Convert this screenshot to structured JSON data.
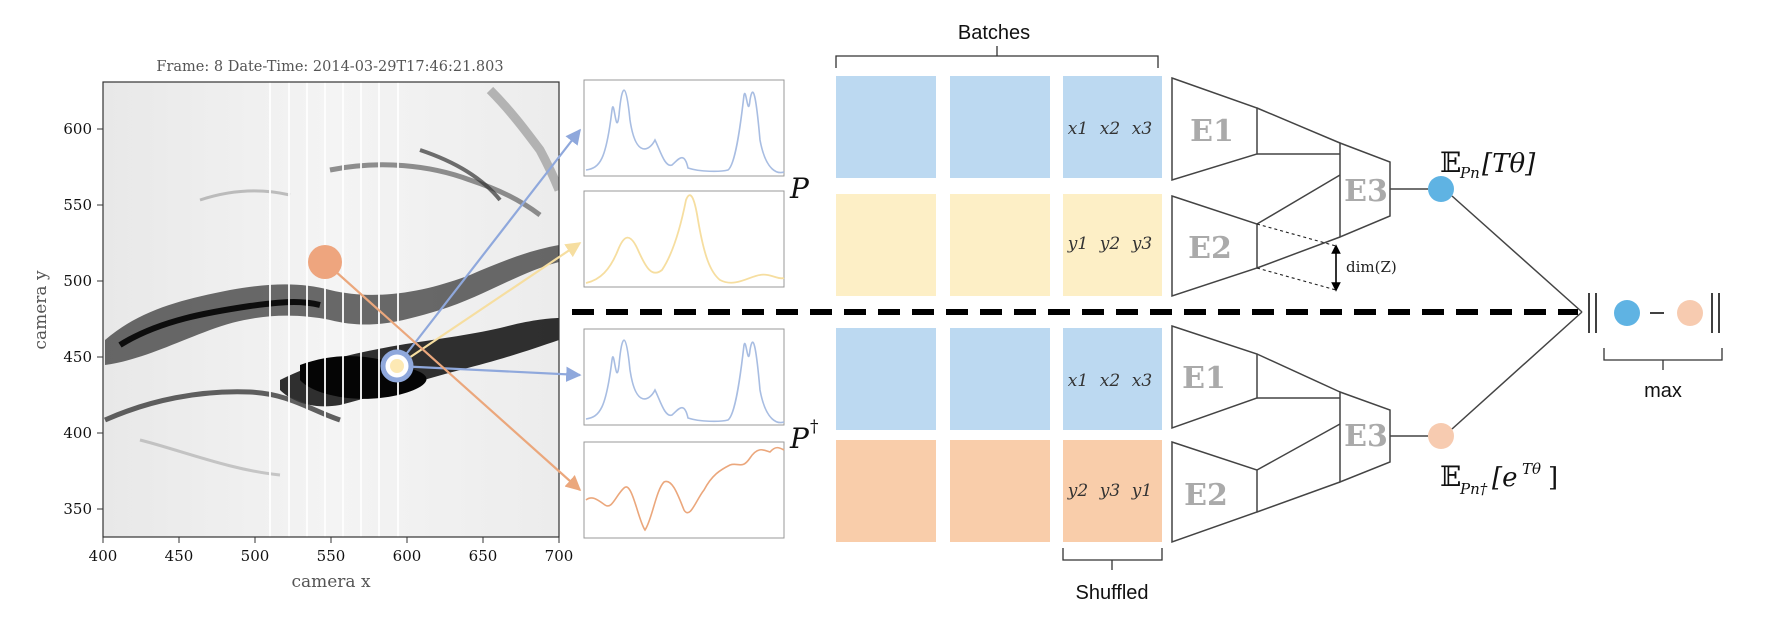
{
  "image_panel": {
    "header": "Frame: 8  Date-Time: 2014-03-29T17:46:21.803",
    "xlabel": "camera x",
    "ylabel": "camera y",
    "x_ticks": [
      "400",
      "450",
      "500",
      "550",
      "600",
      "650",
      "700"
    ],
    "y_ticks": [
      "600",
      "550",
      "500",
      "450",
      "400",
      "350"
    ]
  },
  "labels": {
    "batches": "Batches",
    "shuffled": "Shuffled",
    "max": "max",
    "P": "P",
    "P_dagger": "P",
    "dagger": "†",
    "dimZ": "dim(Z)",
    "E_top": "𝔼",
    "E_top_sub": "Pn",
    "E_top_arg": "[Tθ]",
    "E_bot": "𝔼",
    "E_bot_sub": "Pn†",
    "E_bot_arg": "[e",
    "E_bot_sup": "Tθ",
    "E_bot_close": "]"
  },
  "encoders": {
    "top": [
      "E1",
      "E2",
      "E3"
    ],
    "bottom": [
      "E1",
      "E2",
      "E3"
    ]
  },
  "batch_vars": {
    "top_x": [
      "x1",
      "x2",
      "x3"
    ],
    "top_y": [
      "y1",
      "y2",
      "y3"
    ],
    "bottom_x": [
      "x1",
      "x2",
      "x3"
    ],
    "bottom_y": [
      "y2",
      "y3",
      "y1"
    ]
  },
  "colors": {
    "blue_block": "#bcd9f1",
    "yellow_block": "#fdefc6",
    "orange_block": "#f9cdaa",
    "blue_dot": "#5fb3e3",
    "peach_dot": "#f7cbb0",
    "blue_line": "#8fa8dc",
    "yellow_line": "#f6dea0",
    "orange_line": "#eba77c"
  }
}
